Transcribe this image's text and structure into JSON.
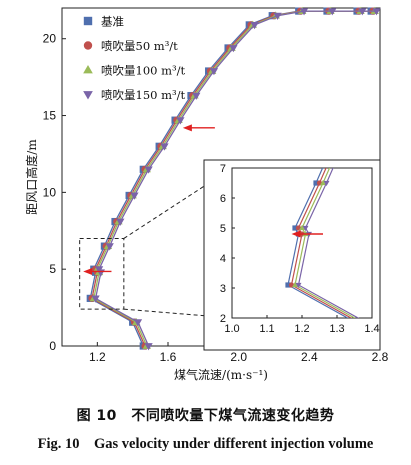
{
  "chart_data": {
    "type": "line",
    "xlabel": "煤气流速/(m·s⁻¹)",
    "ylabel": "距风口高度/m",
    "xlim": [
      1.0,
      2.8
    ],
    "ylim": [
      0,
      22
    ],
    "xticks": [
      "1.2",
      "1.6",
      "2.0",
      "2.4",
      "2.8"
    ],
    "yticks": [
      "0",
      "5",
      "10",
      "15",
      "20"
    ],
    "legend_position": "top-left",
    "series": [
      {
        "name": "基准",
        "marker": "square",
        "color": "#4f6fae",
        "x": [
          1.46,
          1.4,
          1.16,
          1.19,
          1.18,
          1.24,
          1.3,
          1.38,
          1.46,
          1.55,
          1.64,
          1.73,
          1.83,
          1.94,
          2.06,
          2.19,
          2.34,
          2.5,
          2.67,
          2.75
        ],
        "y": [
          0,
          1.55,
          3.1,
          4.8,
          5.0,
          6.5,
          8.1,
          9.8,
          11.5,
          13.0,
          14.7,
          16.3,
          17.9,
          19.4,
          20.9,
          21.5,
          21.8,
          21.8,
          21.8,
          21.8
        ]
      },
      {
        "name": "喷吹量50 m³/t",
        "marker": "circle",
        "color": "#c0504d",
        "x": [
          1.47,
          1.41,
          1.17,
          1.2,
          1.19,
          1.25,
          1.31,
          1.39,
          1.47,
          1.56,
          1.65,
          1.74,
          1.84,
          1.95,
          2.07,
          2.2,
          2.35,
          2.51,
          2.68,
          2.76
        ],
        "y": [
          0,
          1.55,
          3.1,
          4.8,
          5.0,
          6.5,
          8.1,
          9.8,
          11.5,
          13.0,
          14.7,
          16.3,
          17.9,
          19.4,
          20.9,
          21.5,
          21.8,
          21.8,
          21.8,
          21.8
        ]
      },
      {
        "name": "喷吹量100 m³/t",
        "marker": "triangle-up",
        "color": "#9bbb59",
        "x": [
          1.48,
          1.42,
          1.18,
          1.21,
          1.2,
          1.26,
          1.32,
          1.4,
          1.48,
          1.57,
          1.66,
          1.75,
          1.85,
          1.96,
          2.08,
          2.21,
          2.36,
          2.52,
          2.69,
          2.77
        ],
        "y": [
          0,
          1.55,
          3.1,
          4.8,
          5.0,
          6.5,
          8.1,
          9.8,
          11.5,
          13.0,
          14.7,
          16.3,
          17.9,
          19.4,
          20.9,
          21.5,
          21.8,
          21.8,
          21.8,
          21.8
        ]
      },
      {
        "name": "喷吹量150 m³/t",
        "marker": "triangle-down",
        "color": "#7a64a8",
        "x": [
          1.49,
          1.43,
          1.19,
          1.22,
          1.21,
          1.27,
          1.33,
          1.41,
          1.49,
          1.58,
          1.67,
          1.76,
          1.86,
          1.97,
          2.09,
          2.22,
          2.37,
          2.53,
          2.7,
          2.78
        ],
        "y": [
          0,
          1.55,
          3.1,
          4.8,
          5.0,
          6.5,
          8.1,
          9.8,
          11.5,
          13.0,
          14.7,
          16.3,
          17.9,
          19.4,
          20.9,
          21.5,
          21.8,
          21.8,
          21.8,
          21.8
        ]
      }
    ],
    "inset": {
      "xlim": [
        1.0,
        1.4
      ],
      "ylim": [
        2,
        7
      ],
      "xticks": [
        "1.0",
        "1.1",
        "1.2",
        "1.3",
        "1.4"
      ],
      "yticks": [
        "2",
        "3",
        "4",
        "5",
        "6",
        "7"
      ]
    }
  },
  "caption": {
    "cn": "图 10　不同喷吹量下煤气流速变化趋势",
    "en": "Fig. 10　Gas velocity under different injection volume"
  }
}
